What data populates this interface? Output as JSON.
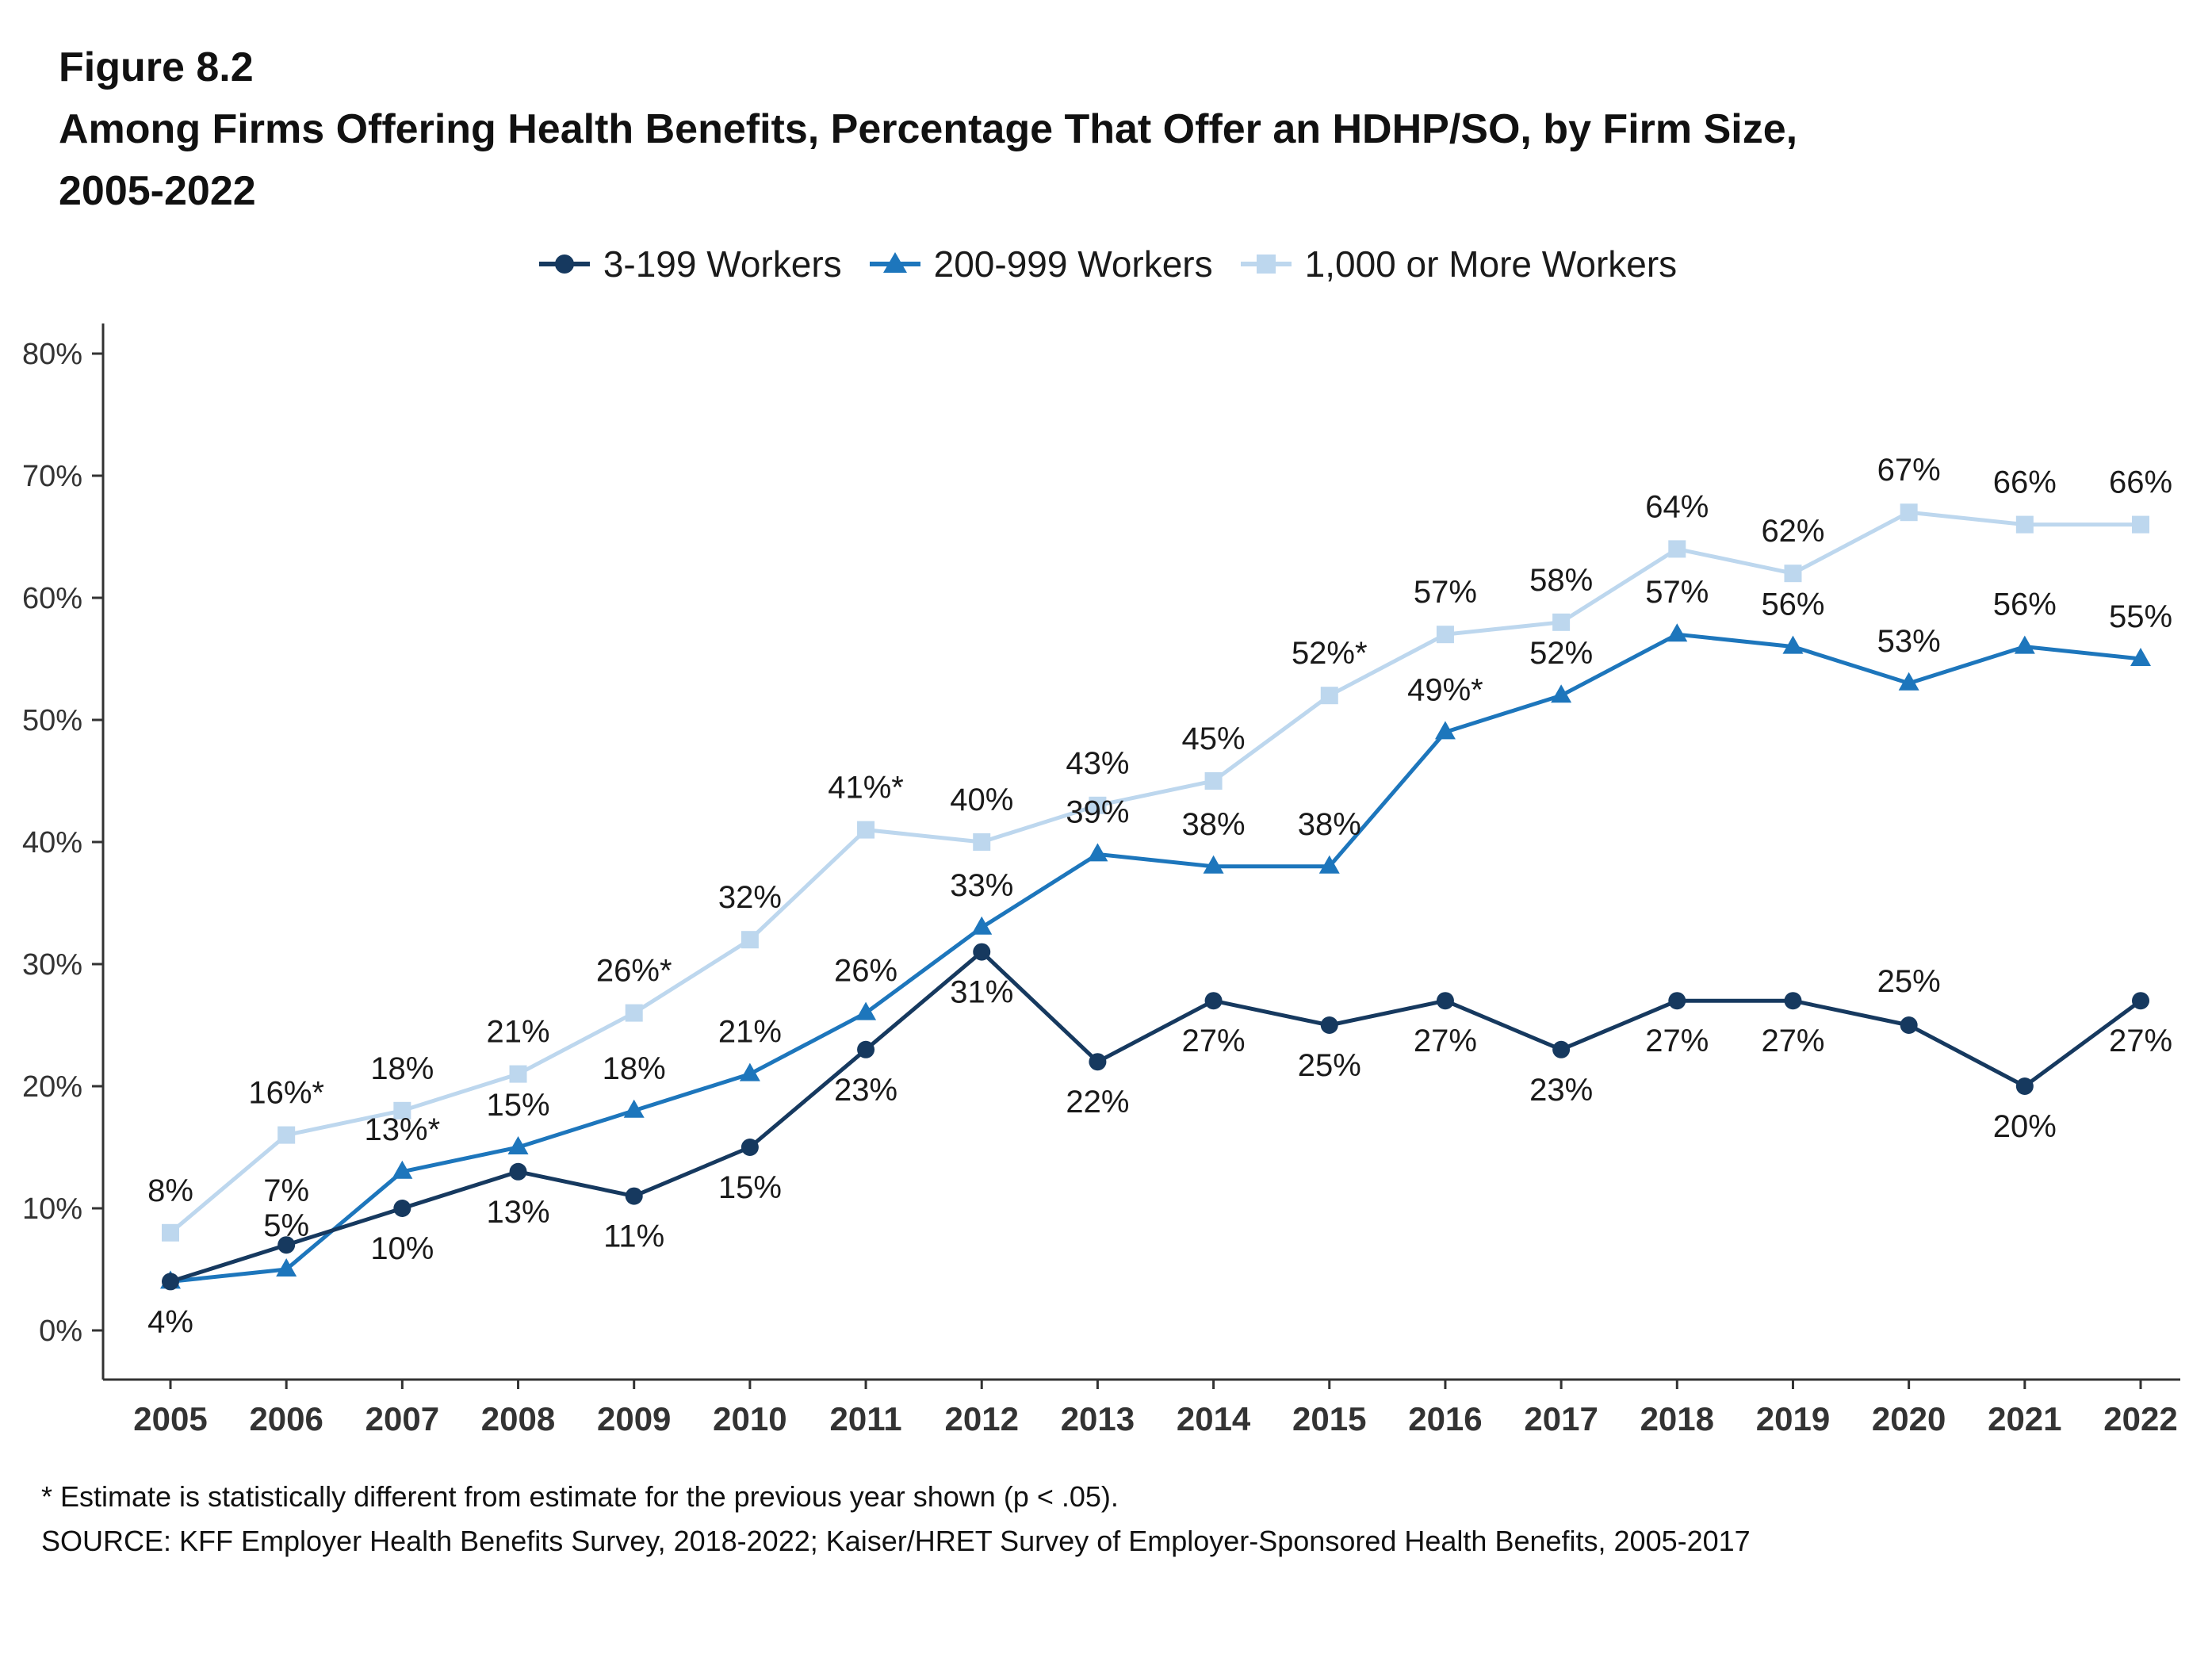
{
  "figure_label": "Figure 8.2",
  "title_lines": [
    "Among Firms Offering Health Benefits, Percentage That Offer an HDHP/SO, by Firm Size,",
    "2005-2022"
  ],
  "footnotes": [
    "* Estimate is statistically different from estimate for the previous year shown (p < .05).",
    "SOURCE: KFF Employer Health Benefits Survey, 2018-2022; Kaiser/HRET Survey of Employer-Sponsored Health Benefits, 2005-2017"
  ],
  "colors": {
    "background": "#ffffff",
    "axis": "#333333",
    "data_label": "#1a1a1a"
  },
  "chart_data": {
    "type": "line",
    "title": "Among Firms Offering Health Benefits, Percentage That Offer an HDHP/SO, by Firm Size, 2005-2022",
    "xlabel": "",
    "ylabel": "",
    "x": [
      "2005",
      "2006",
      "2007",
      "2008",
      "2009",
      "2010",
      "2011",
      "2012",
      "2013",
      "2014",
      "2015",
      "2016",
      "2017",
      "2018",
      "2019",
      "2020",
      "2021",
      "2022"
    ],
    "ylim": [
      0,
      80
    ],
    "yticks": [
      0,
      10,
      20,
      30,
      40,
      50,
      60,
      70,
      80
    ],
    "ytick_suffix": "%",
    "grid": false,
    "legend_position": "top-center",
    "series": [
      {
        "name": "3-199 Workers",
        "marker": "circle",
        "color": "#16395F",
        "values": [
          4,
          7,
          10,
          13,
          11,
          15,
          23,
          31,
          22,
          27,
          25,
          27,
          23,
          27,
          27,
          25,
          20,
          27
        ],
        "labels": [
          "4%",
          "7%",
          "10%",
          "13%",
          "11%",
          "15%",
          "23%",
          "31%",
          "22%",
          "27%",
          "25%",
          "27%",
          "23%",
          "27%",
          "27%",
          "25%",
          "20%",
          "27%"
        ],
        "label_dy": 64,
        "label_offsets": {
          "1": [
            0,
            -55
          ],
          "15": [
            0,
            -42
          ]
        }
      },
      {
        "name": "200-999 Workers",
        "marker": "triangle",
        "color": "#1D76BC",
        "values": [
          4,
          5,
          13,
          15,
          18,
          21,
          26,
          33,
          39,
          38,
          38,
          49,
          52,
          57,
          56,
          53,
          56,
          55
        ],
        "labels": [
          null,
          "5%",
          "13%*",
          "15%",
          "18%",
          "21%",
          "26%",
          "33%",
          "39%",
          "38%",
          "38%",
          "49%*",
          "52%",
          "57%",
          "56%",
          "53%",
          "56%",
          "55%"
        ],
        "label_dy": -40,
        "label_offsets": {
          "1": [
            0,
            -42
          ]
        }
      },
      {
        "name": "1,000 or More Workers",
        "marker": "square",
        "color": "#BDD7EE",
        "values": [
          8,
          16,
          18,
          21,
          26,
          32,
          41,
          40,
          43,
          45,
          52,
          57,
          58,
          64,
          62,
          67,
          66,
          66
        ],
        "labels": [
          "8%",
          "16%*",
          "18%",
          "21%",
          "26%*",
          "32%",
          "41%*",
          "40%",
          "43%",
          "45%",
          "52%*",
          "57%",
          "58%",
          "64%",
          "62%",
          "67%",
          "66%",
          "66%"
        ],
        "label_dy": -40,
        "label_offsets": {}
      }
    ]
  }
}
